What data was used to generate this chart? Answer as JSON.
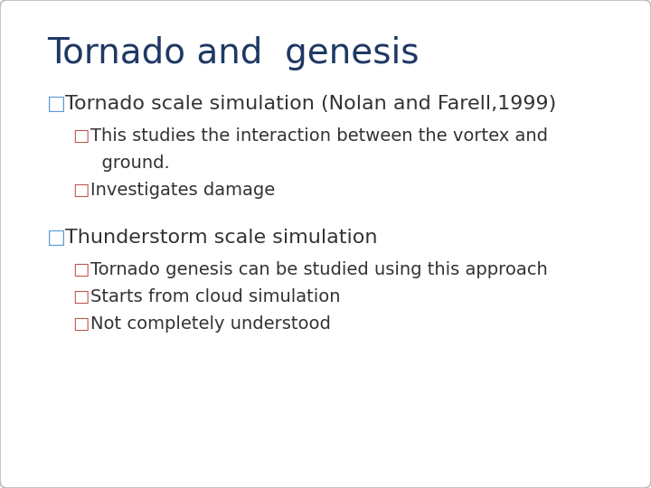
{
  "title": "Tornado and  genesis",
  "title_color": "#1F3864",
  "title_fontsize": 28,
  "background_color": "#FFFFFF",
  "border_color": "#BBBBBB",
  "bullet1_color": "#5B9BD5",
  "bullet2_color": "#C0504D",
  "text_color": "#333333",
  "items": [
    {
      "level": 1,
      "bullet": "□",
      "text": "Tornado scale simulation (Nolan and Farell,1999)",
      "fontsize": 16
    },
    {
      "level": 2,
      "bullet": "□",
      "text": "This studies the interaction between the vortex and",
      "fontsize": 14
    },
    {
      "level": 2,
      "bullet": "",
      "text": "  ground.",
      "fontsize": 14
    },
    {
      "level": 2,
      "bullet": "□",
      "text": "Investigates damage",
      "fontsize": 14
    },
    {
      "level": 0,
      "bullet": "",
      "text": "",
      "fontsize": 10
    },
    {
      "level": 1,
      "bullet": "□",
      "text": "Thunderstorm scale simulation",
      "fontsize": 16
    },
    {
      "level": 2,
      "bullet": "□",
      "text": "Tornado genesis can be studied using this approach",
      "fontsize": 14
    },
    {
      "level": 2,
      "bullet": "□",
      "text": "Starts from cloud simulation",
      "fontsize": 14
    },
    {
      "level": 2,
      "bullet": "□",
      "text": "Not completely understood",
      "fontsize": 14
    }
  ]
}
